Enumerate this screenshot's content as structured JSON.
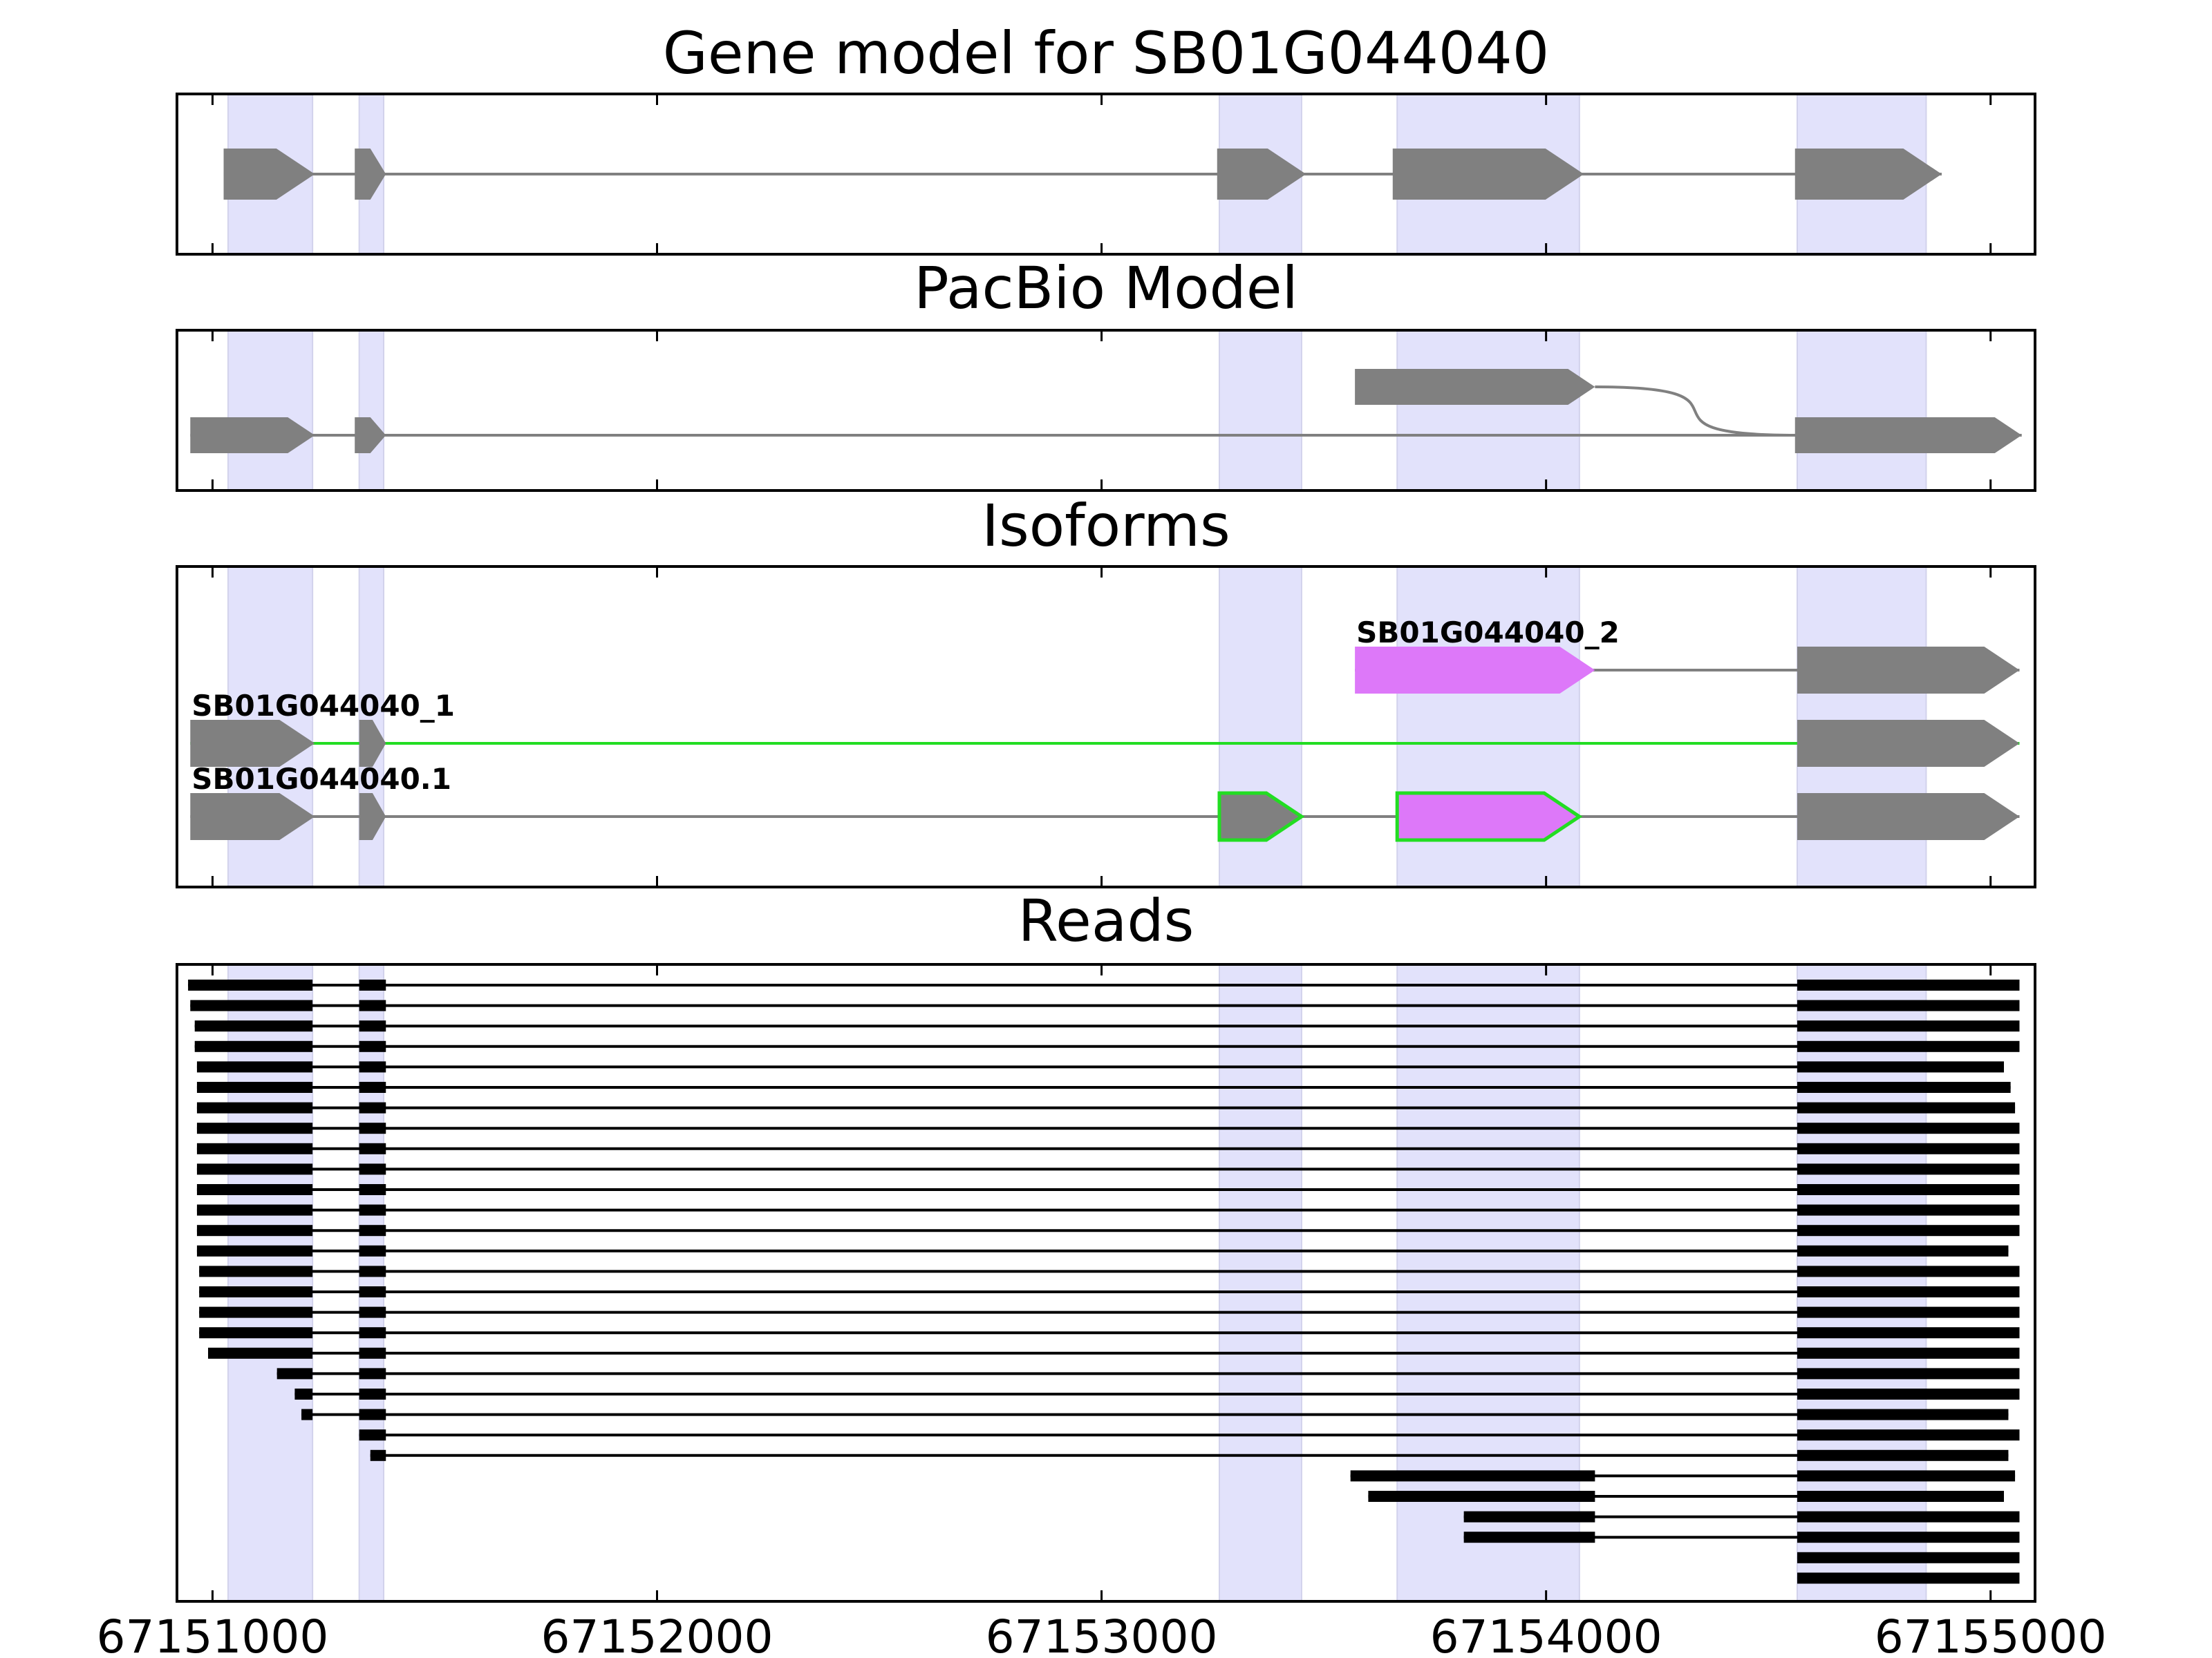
{
  "chart_data": {
    "type": "gene-track",
    "xlim": [
      67150920,
      67155100
    ],
    "xticks": [
      67151000,
      67152000,
      67153000,
      67154000,
      67155000
    ],
    "tick_labels": [
      "67151000",
      "67152000",
      "67153000",
      "67154000",
      "67155000"
    ],
    "exon_regions": [
      [
        67151035,
        67151225
      ],
      [
        67151330,
        67151385
      ],
      [
        67153265,
        67153450
      ],
      [
        67153665,
        67154075
      ],
      [
        67154565,
        67154855
      ]
    ],
    "colors": {
      "region": "#e2e2fb",
      "exon": "#808080",
      "intron": "#808080",
      "highlight_exon": "#dd78f9",
      "highlight_edge": "#22dd22",
      "read": "#000000"
    },
    "panels": [
      {
        "id": "gene-model",
        "title": "Gene model for SB01G044040",
        "tracks": [
          {
            "row": 0,
            "exons": [
              [
                67151025,
                67151230
              ],
              [
                67151320,
                67151390
              ],
              [
                67153260,
                67153460
              ],
              [
                67153655,
                67154085
              ],
              [
                67154560,
                67154890
              ]
            ]
          }
        ]
      },
      {
        "id": "pacbio-model",
        "title": "PacBio Model",
        "tracks": [
          {
            "row": 1,
            "exons": [
              [
                67150950,
                67151230
              ],
              [
                67151320,
                67151390
              ],
              [
                67154560,
                67155070
              ]
            ]
          },
          {
            "row": 0,
            "exons": [
              [
                67153570,
                67154110
              ]
            ],
            "curve_to": {
              "x": 67154560,
              "row": 1
            }
          }
        ]
      },
      {
        "id": "isoforms",
        "title": "Isoforms",
        "tracks": [
          {
            "row": 0,
            "label": "SB01G044040_2",
            "exons": [
              [
                67153570,
                67154110,
                "highlight"
              ],
              [
                67154565,
                67155065
              ]
            ]
          },
          {
            "row": 1,
            "label": "SB01G044040_1",
            "intron_highlight": true,
            "exons": [
              [
                67150950,
                67151230
              ],
              [
                67151330,
                67151390
              ],
              [
                67154565,
                67155065
              ]
            ]
          },
          {
            "row": 2,
            "label": "SB01G044040.1",
            "exons": [
              [
                67150950,
                67151230
              ],
              [
                67151330,
                67151390
              ],
              [
                67153265,
                67153450,
                "outlined"
              ],
              [
                67153665,
                67154075,
                "highlight-outlined"
              ],
              [
                67154565,
                67155065
              ]
            ]
          }
        ]
      },
      {
        "id": "reads",
        "title": "Reads",
        "reads": [
          [
            [
              67150945,
              67151225
            ],
            [
              67151330,
              67151390
            ],
            [
              67154565,
              67155065
            ]
          ],
          [
            [
              67150950,
              67151225
            ],
            [
              67151330,
              67151390
            ],
            [
              67154565,
              67155065
            ]
          ],
          [
            [
              67150960,
              67151225
            ],
            [
              67151330,
              67151390
            ],
            [
              67154565,
              67155065
            ]
          ],
          [
            [
              67150960,
              67151225
            ],
            [
              67151330,
              67151390
            ],
            [
              67154565,
              67155065
            ]
          ],
          [
            [
              67150965,
              67151225
            ],
            [
              67151330,
              67151390
            ],
            [
              67154565,
              67155030
            ]
          ],
          [
            [
              67150965,
              67151225
            ],
            [
              67151330,
              67151390
            ],
            [
              67154565,
              67155045
            ]
          ],
          [
            [
              67150965,
              67151225
            ],
            [
              67151330,
              67151390
            ],
            [
              67154565,
              67155055
            ]
          ],
          [
            [
              67150965,
              67151225
            ],
            [
              67151330,
              67151390
            ],
            [
              67154565,
              67155065
            ]
          ],
          [
            [
              67150965,
              67151225
            ],
            [
              67151330,
              67151390
            ],
            [
              67154565,
              67155065
            ]
          ],
          [
            [
              67150965,
              67151225
            ],
            [
              67151330,
              67151390
            ],
            [
              67154565,
              67155065
            ]
          ],
          [
            [
              67150965,
              67151225
            ],
            [
              67151330,
              67151390
            ],
            [
              67154565,
              67155065
            ]
          ],
          [
            [
              67150965,
              67151225
            ],
            [
              67151330,
              67151390
            ],
            [
              67154565,
              67155065
            ]
          ],
          [
            [
              67150965,
              67151225
            ],
            [
              67151330,
              67151390
            ],
            [
              67154565,
              67155065
            ]
          ],
          [
            [
              67150965,
              67151225
            ],
            [
              67151330,
              67151390
            ],
            [
              67154565,
              67155040
            ]
          ],
          [
            [
              67150970,
              67151225
            ],
            [
              67151330,
              67151390
            ],
            [
              67154565,
              67155065
            ]
          ],
          [
            [
              67150970,
              67151225
            ],
            [
              67151330,
              67151390
            ],
            [
              67154565,
              67155065
            ]
          ],
          [
            [
              67150970,
              67151225
            ],
            [
              67151330,
              67151390
            ],
            [
              67154565,
              67155065
            ]
          ],
          [
            [
              67150970,
              67151225
            ],
            [
              67151330,
              67151390
            ],
            [
              67154565,
              67155065
            ]
          ],
          [
            [
              67150990,
              67151225
            ],
            [
              67151330,
              67151390
            ],
            [
              67154565,
              67155065
            ]
          ],
          [
            [
              67151145,
              67151225
            ],
            [
              67151330,
              67151390
            ],
            [
              67154565,
              67155065
            ]
          ],
          [
            [
              67151185,
              67151225
            ],
            [
              67151330,
              67151390
            ],
            [
              67154565,
              67155065
            ]
          ],
          [
            [
              67151200,
              67151225
            ],
            [
              67151330,
              67151390
            ],
            [
              67154565,
              67155040
            ]
          ],
          [
            [
              67151330,
              67151390
            ],
            [
              67154565,
              67155065
            ]
          ],
          [
            [
              67151355,
              67151390
            ],
            [
              67154565,
              67155040
            ]
          ],
          [
            [
              67153560,
              67154110
            ],
            [
              67154565,
              67155055
            ]
          ],
          [
            [
              67153600,
              67154110
            ],
            [
              67154565,
              67155030
            ]
          ],
          [
            [
              67153815,
              67154110
            ],
            [
              67154565,
              67155065
            ]
          ],
          [
            [
              67153815,
              67154110
            ],
            [
              67154565,
              67155065
            ]
          ],
          [
            [
              67154565,
              67155065
            ]
          ],
          [
            [
              67154565,
              67155065
            ]
          ]
        ]
      }
    ]
  }
}
